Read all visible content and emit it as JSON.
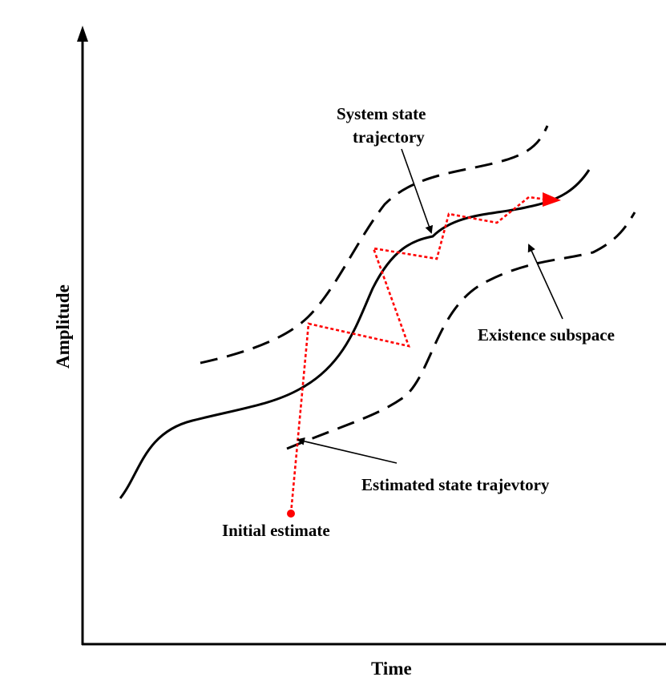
{
  "diagram": {
    "axes": {
      "x_label": "Time",
      "y_label": "Amplitude"
    },
    "labels": {
      "system_state_line1": "System state",
      "system_state_line2": "trajectory",
      "existence_subspace": "Existence subspace",
      "estimated_state": "Estimated state trajevtory",
      "initial_estimate": "Initial estimate"
    },
    "colors": {
      "axis": "#000000",
      "system_trajectory": "#000000",
      "existence_bounds": "#000000",
      "estimated_trajectory": "#ff0000",
      "initial_point": "#ff0000"
    }
  }
}
